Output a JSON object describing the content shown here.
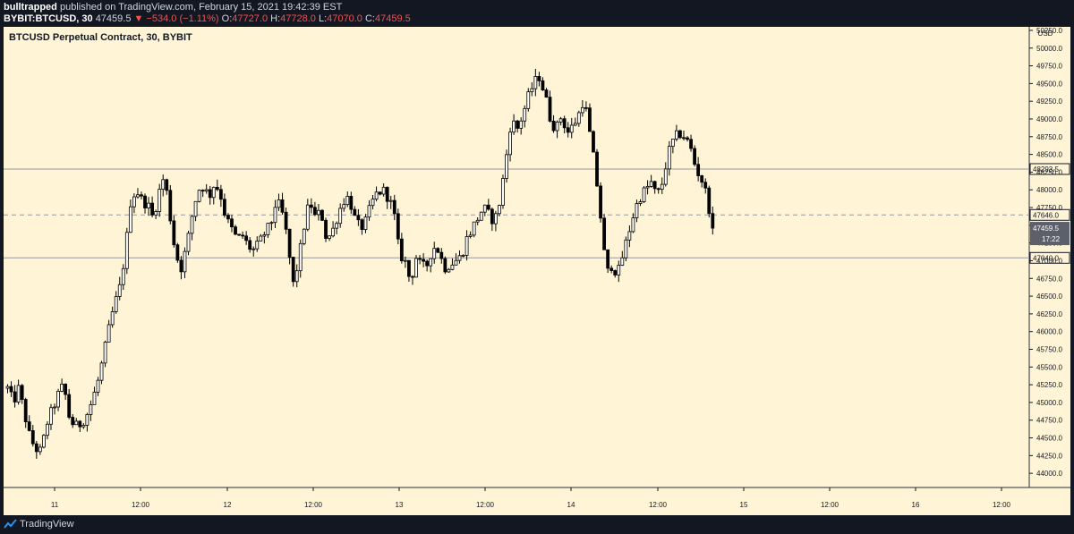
{
  "header": {
    "author": "bulltrapped",
    "published": "published on TradingView.com, February 15, 2021 19:42:39 EST",
    "symbol": "BYBIT:BTCUSD, 30",
    "last": "47459.5",
    "change": "−534.0 (−1.11%)",
    "o_label": "O:",
    "o": "47727.0",
    "h_label": "H:",
    "h": "47728.0",
    "l_label": "L:",
    "l": "47070.0",
    "c_label": "C:",
    "c": "47459.5"
  },
  "footer": {
    "brand": "TradingView",
    "icon": "tradingview-logo-icon"
  },
  "colors": {
    "background": "#fff5d6",
    "frame": "#131722",
    "up": "#ffffff",
    "down": "#000000",
    "wick": "#000000"
  },
  "chart_data": {
    "type": "candlestick",
    "title": "BTCUSD Perpetual Contract, 30, BYBIT",
    "currency": "USD",
    "ylim": [
      43800,
      50300
    ],
    "x_tick_labels": [
      "11",
      "12:00",
      "12",
      "12:00",
      "13",
      "12:00",
      "14",
      "12:00",
      "15",
      "12:00",
      "16",
      "12:00"
    ],
    "y_ticks": [
      44000,
      44250,
      44500,
      44750,
      45000,
      45250,
      45500,
      45750,
      46000,
      46250,
      46500,
      46750,
      47000,
      47250,
      47500,
      47750,
      48000,
      48250,
      48500,
      48750,
      49000,
      49250,
      49500,
      49750,
      50000,
      50250
    ],
    "horizontal_lines": [
      {
        "value": 48293.5,
        "label": "48293.5",
        "style": "solid"
      },
      {
        "value": 47646.0,
        "label": "47646.0",
        "style": "dashed"
      },
      {
        "value": 47040.0,
        "label": "47040.0",
        "style": "solid"
      }
    ],
    "last_price": {
      "value": 47459.5,
      "label": "47459.5",
      "countdown": "17:22"
    },
    "waypoints": [
      [
        0,
        45200
      ],
      [
        1,
        45000
      ],
      [
        2,
        45200
      ],
      [
        3,
        44850
      ],
      [
        4,
        44500
      ],
      [
        5,
        44350
      ],
      [
        6,
        44300
      ],
      [
        7,
        44700
      ],
      [
        8,
        44900
      ],
      [
        9,
        45100
      ],
      [
        10,
        45250
      ],
      [
        11,
        44800
      ],
      [
        12,
        44650
      ],
      [
        13,
        44700
      ],
      [
        14,
        44800
      ],
      [
        15,
        45000
      ],
      [
        16,
        45250
      ],
      [
        17,
        45600
      ],
      [
        18,
        46000
      ],
      [
        19,
        46350
      ],
      [
        20,
        46600
      ],
      [
        21,
        47100
      ],
      [
        22,
        47850
      ],
      [
        23,
        48000
      ],
      [
        24,
        47850
      ],
      [
        25,
        47800
      ],
      [
        26,
        47600
      ],
      [
        27,
        47950
      ],
      [
        28,
        48200
      ],
      [
        29,
        47650
      ],
      [
        30,
        47100
      ],
      [
        31,
        46900
      ],
      [
        32,
        47200
      ],
      [
        33,
        47650
      ],
      [
        34,
        48000
      ],
      [
        35,
        48050
      ],
      [
        36,
        47900
      ],
      [
        37,
        48100
      ],
      [
        38,
        47950
      ],
      [
        39,
        47600
      ],
      [
        40,
        47450
      ],
      [
        41,
        47300
      ],
      [
        42,
        47350
      ],
      [
        43,
        47200
      ],
      [
        44,
        47150
      ],
      [
        45,
        47250
      ],
      [
        46,
        47400
      ],
      [
        47,
        47500
      ],
      [
        48,
        47850
      ],
      [
        49,
        47700
      ],
      [
        50,
        47300
      ],
      [
        51,
        46650
      ],
      [
        52,
        47000
      ],
      [
        53,
        47500
      ],
      [
        54,
        47850
      ],
      [
        55,
        47600
      ],
      [
        56,
        47700
      ],
      [
        57,
        47300
      ],
      [
        58,
        47400
      ],
      [
        59,
        47650
      ],
      [
        60,
        47850
      ],
      [
        61,
        47900
      ],
      [
        62,
        47600
      ],
      [
        63,
        47450
      ],
      [
        64,
        47550
      ],
      [
        65,
        47800
      ],
      [
        66,
        47950
      ],
      [
        67,
        48000
      ],
      [
        68,
        47900
      ],
      [
        69,
        47700
      ],
      [
        70,
        47100
      ],
      [
        71,
        47000
      ],
      [
        72,
        46700
      ],
      [
        73,
        47050
      ],
      [
        74,
        46900
      ],
      [
        75,
        46950
      ],
      [
        76,
        47200
      ],
      [
        77,
        47150
      ],
      [
        78,
        46900
      ],
      [
        79,
        46950
      ],
      [
        80,
        47000
      ],
      [
        81,
        47050
      ],
      [
        82,
        47300
      ],
      [
        83,
        47450
      ],
      [
        84,
        47600
      ],
      [
        85,
        47750
      ],
      [
        86,
        47650
      ],
      [
        87,
        47550
      ],
      [
        88,
        47850
      ],
      [
        89,
        48400
      ],
      [
        90,
        49000
      ],
      [
        91,
        48850
      ],
      [
        92,
        49050
      ],
      [
        93,
        49300
      ],
      [
        94,
        49500
      ],
      [
        95,
        49600
      ],
      [
        96,
        49350
      ],
      [
        97,
        49000
      ],
      [
        98,
        48850
      ],
      [
        99,
        49050
      ],
      [
        100,
        48800
      ],
      [
        101,
        48900
      ],
      [
        102,
        49050
      ],
      [
        103,
        49300
      ],
      [
        104,
        48800
      ],
      [
        105,
        48300
      ],
      [
        106,
        47600
      ],
      [
        107,
        46800
      ],
      [
        108,
        46950
      ],
      [
        109,
        46800
      ],
      [
        110,
        47100
      ],
      [
        111,
        47400
      ],
      [
        112,
        47700
      ],
      [
        113,
        47900
      ],
      [
        114,
        48000
      ],
      [
        115,
        48100
      ],
      [
        116,
        47900
      ],
      [
        117,
        48100
      ],
      [
        118,
        48500
      ],
      [
        119,
        48700
      ],
      [
        120,
        48800
      ],
      [
        121,
        48750
      ],
      [
        122,
        48600
      ],
      [
        123,
        48300
      ],
      [
        124,
        48150
      ],
      [
        125,
        47900
      ],
      [
        126,
        47459.5
      ]
    ]
  }
}
